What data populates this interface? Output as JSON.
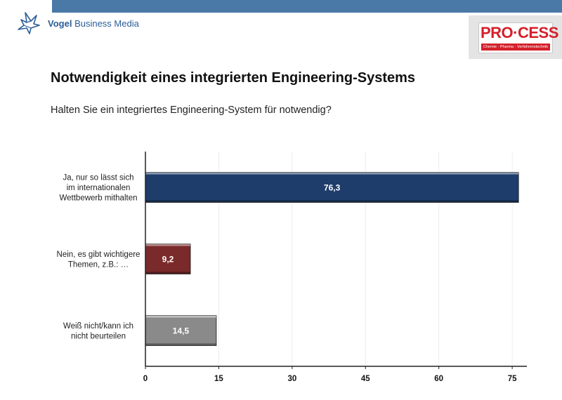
{
  "header": {
    "company_bold": "Vogel",
    "company_rest": "Business Media",
    "logo_word": "PRO·CESS",
    "logo_tagline": "Chemie · Pharma · Verfahrenstechnik"
  },
  "title": "Notwendigkeit eines integrierten Engineering-Systems",
  "subtitle": "Halten Sie ein integriertes Engineering-System für notwendig?",
  "colors": {
    "bar_series": [
      "#1f3d6b",
      "#7a2a2a",
      "#8a8a8a"
    ],
    "top_bar": "#4a79a8",
    "brand": "#2b5d97",
    "logo_red": "#d4202a"
  },
  "chart_data": {
    "type": "bar",
    "orientation": "horizontal",
    "title": "Notwendigkeit eines integrierten Engineering-Systems",
    "categories": [
      [
        "Ja, nur so lässt sich",
        "im internationalen",
        "Wettbewerb mithalten"
      ],
      [
        "Nein, es gibt wichtigere",
        "Themen, z.B.: …"
      ],
      [
        "Weiß nicht/kann ich",
        "nicht beurteilen"
      ]
    ],
    "values": [
      76.3,
      9.2,
      14.5
    ],
    "value_labels": [
      "76,3",
      "9,2",
      "14,5"
    ],
    "xlim": [
      0,
      78
    ],
    "ticks": [
      0,
      15,
      30,
      45,
      60,
      75
    ],
    "grid": true,
    "xlabel": "",
    "ylabel": ""
  }
}
